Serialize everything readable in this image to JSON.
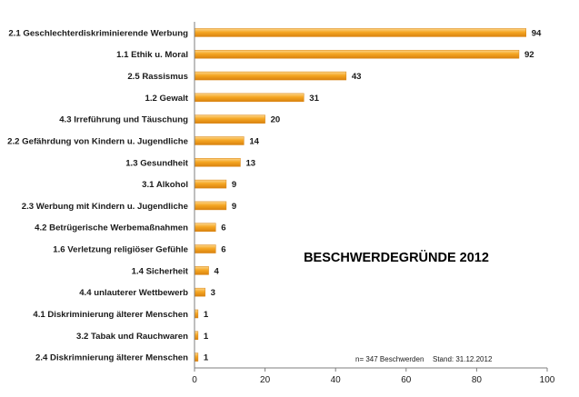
{
  "chart_data": {
    "type": "bar",
    "orientation": "horizontal",
    "title": "BESCHWERDEGRÜNDE 2012",
    "footnote_count": "n= 347 Beschwerden",
    "footnote_date": "Stand: 31.12.2012",
    "categories": [
      "2.1 Geschlechterdiskriminierende Werbung",
      "1.1 Ethik u. Moral",
      "2.5 Rassismus",
      "1.2 Gewalt",
      "4.3 Irreführung und Täuschung",
      "2.2 Gefährdung von Kindern u. Jugendliche",
      "1.3 Gesundheit",
      "3.1 Alkohol",
      "2.3 Werbung mit Kindern u. Jugendliche",
      "4.2 Betrügerische Werbemaßnahmen",
      "1.6 Verletzung religiöser Gefühle",
      "1.4 Sicherheit",
      "4.4 unlauterer Wettbewerb",
      "4.1 Diskriminierung älterer Menschen",
      "3.2 Tabak und Rauchwaren",
      "2.4 Diskrimnierung älterer Menschen"
    ],
    "values": [
      94,
      92,
      43,
      31,
      20,
      14,
      13,
      9,
      9,
      6,
      6,
      4,
      3,
      1,
      1,
      1
    ],
    "xlim": [
      0,
      100
    ],
    "xticks": [
      0,
      20,
      40,
      60,
      80,
      100
    ],
    "grid": false,
    "legend": "none",
    "bar_color": "#f5a623",
    "bar_color_light": "#fcd58a",
    "bar_color_dark": "#d9820f"
  }
}
